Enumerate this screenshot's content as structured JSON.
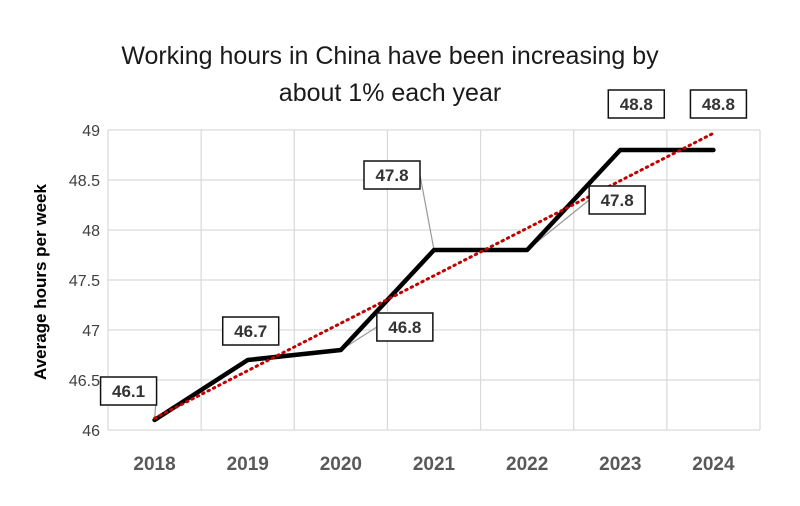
{
  "chart_data": {
    "type": "line",
    "title_lines": [
      "Working hours in China have been increasing by",
      "about 1% each year"
    ],
    "xlabel": "",
    "ylabel": "Average hours per week",
    "categories": [
      "2018",
      "2019",
      "2020",
      "2021",
      "2022",
      "2023",
      "2024"
    ],
    "series": [
      {
        "values": [
          46.1,
          46.7,
          46.8,
          47.8,
          47.8,
          48.8,
          48.8
        ],
        "color": "#000000"
      }
    ],
    "data_labels": [
      "46.1",
      "46.7",
      "46.8",
      "47.8",
      "47.8",
      "48.8",
      "48.8"
    ],
    "trendline": {
      "type": "linear",
      "color": "#c00000",
      "style": "dotted"
    },
    "ylim": [
      46,
      49
    ],
    "y_ticks": [
      "46",
      "46.5",
      "47",
      "47.5",
      "48",
      "48.5",
      "49"
    ],
    "grid": true,
    "legend": "none"
  }
}
